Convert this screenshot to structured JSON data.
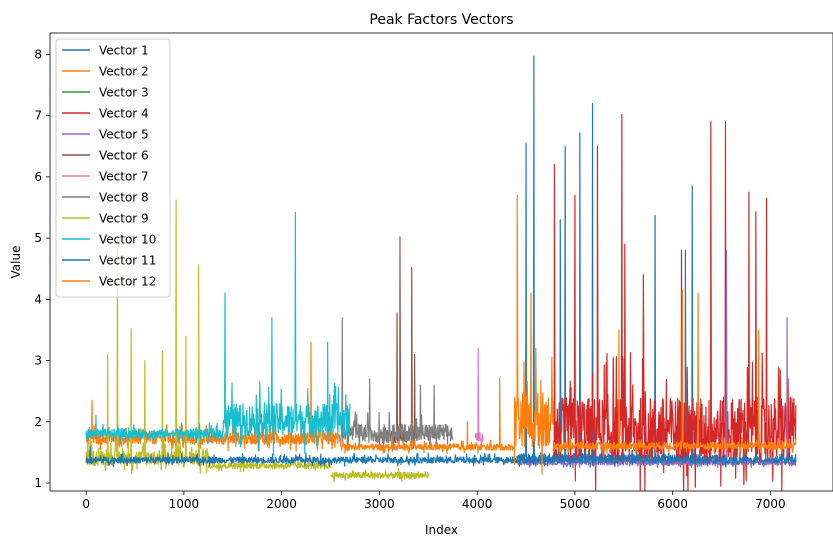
{
  "chart_data": {
    "type": "line",
    "title": "Peak Factors Vectors",
    "xlabel": "Index",
    "ylabel": "Value",
    "xlim": [
      -370,
      7640
    ],
    "ylim": [
      0.87,
      8.35
    ],
    "xticks": [
      0,
      1000,
      2000,
      3000,
      4000,
      5000,
      6000,
      7000
    ],
    "xtick_labels": [
      "0",
      "1000",
      "2000",
      "3000",
      "4000",
      "5000",
      "6000",
      "7000"
    ],
    "yticks": [
      1,
      2,
      3,
      4,
      5,
      6,
      7,
      8
    ],
    "ytick_labels": [
      "1",
      "2",
      "3",
      "4",
      "5",
      "6",
      "7",
      "8"
    ],
    "grid": false,
    "legend_position": "top-left",
    "series": [
      {
        "name": "Vector 1",
        "color": "#1f77b4",
        "segments": [
          {
            "x_start": 4400,
            "x_end": 5200,
            "base": 1.4,
            "noise": 0.15,
            "spikes": [
              [
                4500,
                6.55
              ],
              [
                4580,
                7.97
              ],
              [
                4900,
                6.5
              ],
              [
                5050,
                6.72
              ],
              [
                5180,
                7.2
              ],
              [
                4850,
                5.3
              ]
            ]
          },
          {
            "x_start": 5200,
            "x_end": 6550,
            "base": 1.4,
            "noise": 0.12,
            "spikes": [
              [
                5820,
                5.37
              ],
              [
                6200,
                5.85
              ],
              [
                6130,
                4.8
              ]
            ]
          }
        ]
      },
      {
        "name": "Vector 2",
        "color": "#ff7f0e",
        "segments": [
          {
            "x_start": 0,
            "x_end": 2600,
            "base": 1.72,
            "noise": 0.2,
            "spikes": [
              [
                60,
                2.35
              ],
              [
                2300,
                3.3
              ]
            ]
          }
        ]
      },
      {
        "name": "Vector 3",
        "color": "#2ca02c",
        "segments": []
      },
      {
        "name": "Vector 4",
        "color": "#d62728",
        "segments": [
          {
            "x_start": 4780,
            "x_end": 7260,
            "base": 1.8,
            "noise": 1.1,
            "spikes": [
              [
                4790,
                6.2
              ],
              [
                5000,
                5.7
              ],
              [
                5230,
                6.5
              ],
              [
                5480,
                7.02
              ],
              [
                5510,
                4.9
              ],
              [
                6390,
                6.9
              ],
              [
                6540,
                6.9
              ],
              [
                6780,
                5.75
              ],
              [
                6850,
                5.43
              ],
              [
                6960,
                5.65
              ],
              [
                6090,
                4.8
              ],
              [
                5700,
                4.4
              ]
            ]
          }
        ]
      },
      {
        "name": "Vector 5",
        "color": "#9467bd",
        "segments": [
          {
            "x_start": 4400,
            "x_end": 7260,
            "base": 1.33,
            "noise": 0.08,
            "spikes": [
              [
                6550,
                4.8
              ],
              [
                7170,
                3.7
              ]
            ]
          }
        ]
      },
      {
        "name": "Vector 6",
        "color": "#8c564b",
        "segments": [
          {
            "x_start": 3000,
            "x_end": 3400,
            "base": 1.75,
            "noise": 0.2,
            "spikes": [
              [
                3180,
                3.78
              ],
              [
                3210,
                5.02
              ],
              [
                3330,
                4.52
              ],
              [
                3360,
                3.1
              ]
            ]
          }
        ]
      },
      {
        "name": "Vector 7",
        "color": "#e377c2",
        "segments": [
          {
            "x_start": 3980,
            "x_end": 4060,
            "base": 1.75,
            "noise": 0.15,
            "spikes": [
              [
                4010,
                3.2
              ]
            ]
          }
        ]
      },
      {
        "name": "Vector 8",
        "color": "#7f7f7f",
        "segments": [
          {
            "x_start": 2600,
            "x_end": 3750,
            "base": 1.8,
            "noise": 0.3,
            "spikes": [
              [
                2620,
                3.7
              ],
              [
                2900,
                2.7
              ],
              [
                3420,
                2.6
              ],
              [
                3560,
                2.6
              ]
            ]
          }
        ]
      },
      {
        "name": "Vector 9",
        "color": "#bcbd22",
        "segments": [
          {
            "x_start": 0,
            "x_end": 1250,
            "base": 1.4,
            "noise": 0.25,
            "spikes": [
              [
                220,
                3.1
              ],
              [
                320,
                4.95
              ],
              [
                460,
                3.52
              ],
              [
                600,
                3.0
              ],
              [
                780,
                3.15
              ],
              [
                920,
                5.62
              ],
              [
                1020,
                3.4
              ],
              [
                1150,
                4.56
              ]
            ]
          },
          {
            "x_start": 1250,
            "x_end": 2500,
            "base": 1.28,
            "noise": 0.1,
            "spikes": []
          },
          {
            "x_start": 2500,
            "x_end": 3500,
            "base": 1.12,
            "noise": 0.1,
            "spikes": []
          }
        ]
      },
      {
        "name": "Vector 10",
        "color": "#17becf",
        "segments": [
          {
            "x_start": 0,
            "x_end": 1400,
            "base": 1.8,
            "noise": 0.15,
            "spikes": [
              [
                100,
                2.1
              ]
            ]
          },
          {
            "x_start": 1400,
            "x_end": 2700,
            "base": 2.0,
            "noise": 0.55,
            "spikes": [
              [
                1420,
                4.1
              ],
              [
                1900,
                3.7
              ],
              [
                2140,
                5.42
              ],
              [
                2470,
                3.3
              ]
            ]
          }
        ]
      },
      {
        "name": "Vector 11",
        "color": "#1f77b4",
        "segments": [
          {
            "x_start": 0,
            "x_end": 7260,
            "base": 1.37,
            "noise": 0.1,
            "spikes": [
              [
                40,
                1.6
              ]
            ]
          }
        ]
      },
      {
        "name": "Vector 12",
        "color": "#ff7f0e",
        "segments": [
          {
            "x_start": 2600,
            "x_end": 4380,
            "base": 1.58,
            "noise": 0.1,
            "spikes": [
              [
                4230,
                2.72
              ],
              [
                3900,
                2.0
              ]
            ]
          },
          {
            "x_start": 4380,
            "x_end": 4780,
            "base": 2.0,
            "noise": 0.9,
            "spikes": [
              [
                4410,
                5.7
              ],
              [
                4550,
                4.1
              ],
              [
                4600,
                3.2
              ]
            ]
          },
          {
            "x_start": 4780,
            "x_end": 7260,
            "base": 1.6,
            "noise": 0.12,
            "spikes": [
              [
                6100,
                4.15
              ],
              [
                6260,
                4.1
              ],
              [
                5450,
                3.5
              ],
              [
                6880,
                3.5
              ]
            ]
          }
        ]
      }
    ]
  }
}
